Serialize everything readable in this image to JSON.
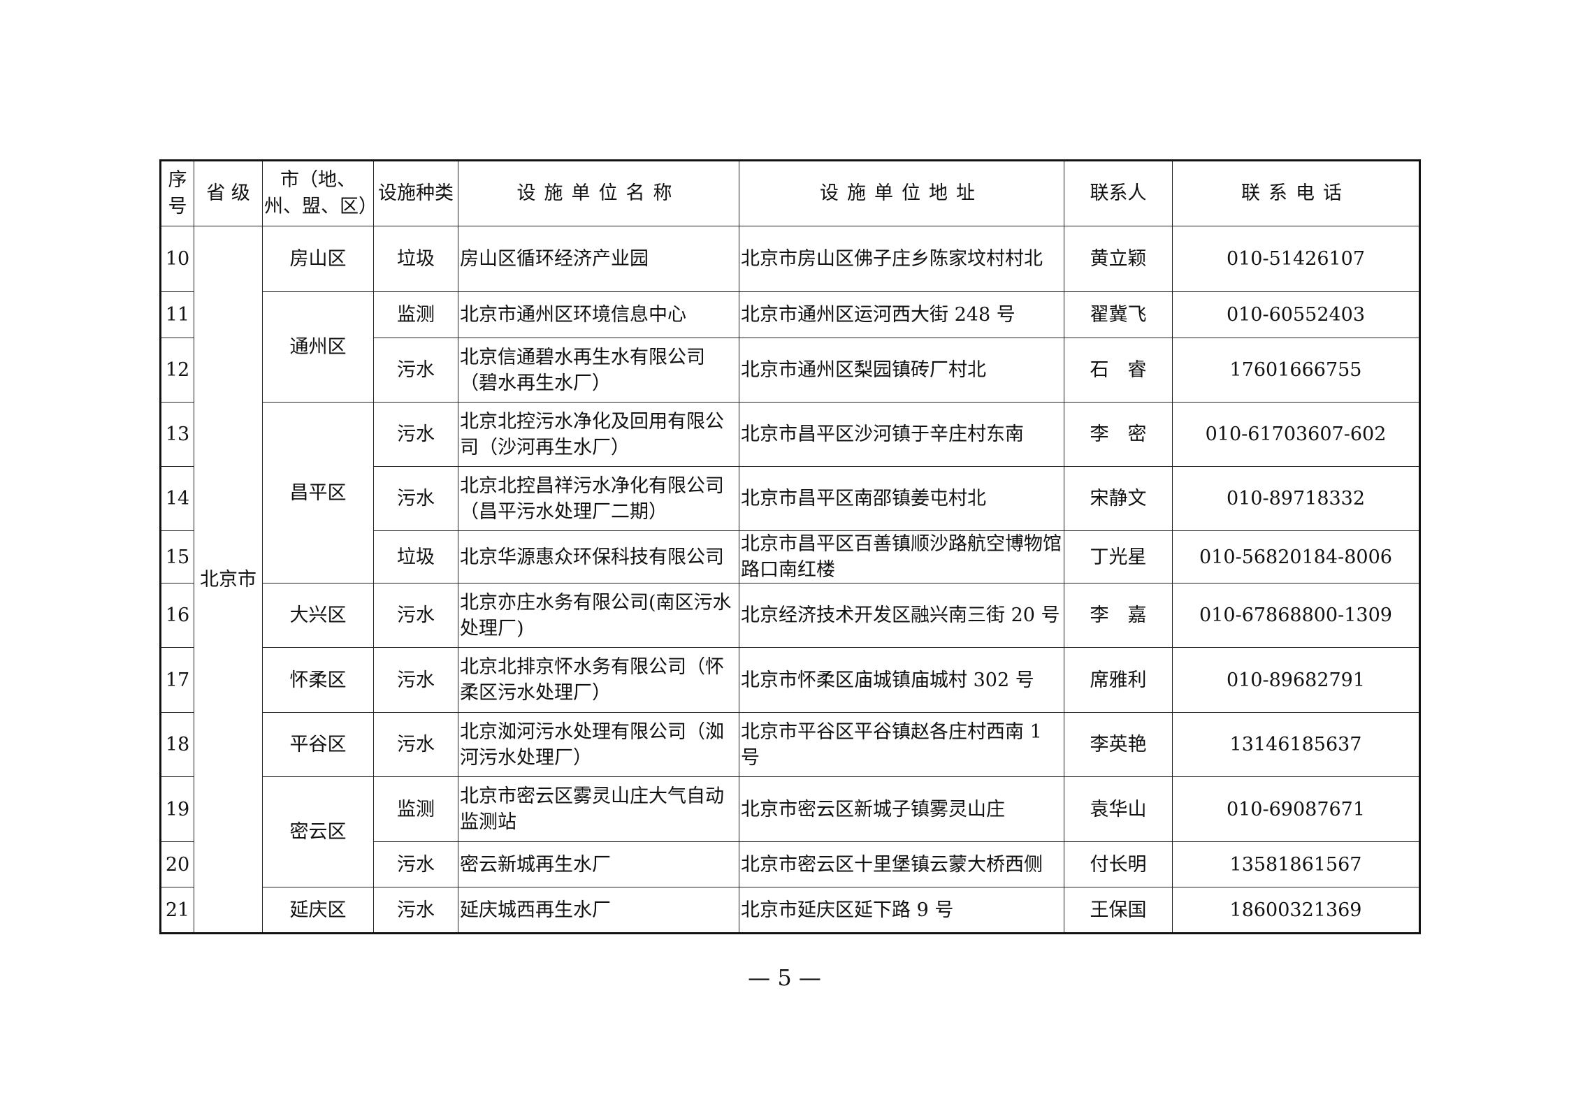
{
  "header": {
    "seq": "序号",
    "province": "省 级",
    "city": "市（地、州、盟、区）",
    "type": "设施种类",
    "name": "设施单位名称",
    "address": "设施单位地址",
    "contact": "联系人",
    "phone": "联系电话"
  },
  "province": "北京市",
  "rows": [
    {
      "seq": "10",
      "district": "房山区",
      "type": "垃圾",
      "name": "房山区循环经济产业园",
      "address": "北京市房山区佛子庄乡陈家坟村村北",
      "contact": "黄立颖",
      "phone": "010-51426107"
    },
    {
      "seq": "11",
      "district": "通州区",
      "type": "监测",
      "name": "北京市通州区环境信息中心",
      "address": "北京市通州区运河西大街 248 号",
      "contact": "翟冀飞",
      "phone": "010-60552403"
    },
    {
      "seq": "12",
      "district": "通州区",
      "type": "污水",
      "name": "北京信通碧水再生水有限公司（碧水再生水厂）",
      "address": "北京市通州区梨园镇砖厂村北",
      "contact": "石　睿",
      "phone": "17601666755"
    },
    {
      "seq": "13",
      "district": "昌平区",
      "type": "污水",
      "name": "北京北控污水净化及回用有限公司（沙河再生水厂）",
      "address": "北京市昌平区沙河镇于辛庄村东南",
      "contact": "李　密",
      "phone": "010-61703607-602"
    },
    {
      "seq": "14",
      "district": "昌平区",
      "type": "污水",
      "name": "北京北控昌祥污水净化有限公司（昌平污水处理厂二期）",
      "address": "北京市昌平区南邵镇姜屯村北",
      "contact": "宋静文",
      "phone": "010-89718332"
    },
    {
      "seq": "15",
      "district": "昌平区",
      "type": "垃圾",
      "name": "北京华源惠众环保科技有限公司",
      "address": "北京市昌平区百善镇顺沙路航空博物馆路口南红楼",
      "contact": "丁光星",
      "phone": "010-56820184-8006"
    },
    {
      "seq": "16",
      "district": "大兴区",
      "type": "污水",
      "name": "北京亦庄水务有限公司(南区污水处理厂)",
      "address": "北京经济技术开发区融兴南三街 20 号",
      "contact": "李　嘉",
      "phone": "010-67868800-1309"
    },
    {
      "seq": "17",
      "district": "怀柔区",
      "type": "污水",
      "name": "北京北排京怀水务有限公司（怀柔区污水处理厂）",
      "address": "北京市怀柔区庙城镇庙城村 302 号",
      "contact": "席雅利",
      "phone": "010-89682791"
    },
    {
      "seq": "18",
      "district": "平谷区",
      "type": "污水",
      "name": "北京洳河污水处理有限公司（洳河污水处理厂）",
      "address": "北京市平谷区平谷镇赵各庄村西南 1 号",
      "contact": "李英艳",
      "phone": "13146185637"
    },
    {
      "seq": "19",
      "district": "密云区",
      "type": "监测",
      "name": "北京市密云区雾灵山庄大气自动监测站",
      "address": "北京市密云区新城子镇雾灵山庄",
      "contact": "袁华山",
      "phone": "010-69087671"
    },
    {
      "seq": "20",
      "district": "密云区",
      "type": "污水",
      "name": "密云新城再生水厂",
      "address": "北京市密云区十里堡镇云蒙大桥西侧",
      "contact": "付长明",
      "phone": "13581861567"
    },
    {
      "seq": "21",
      "district": "延庆区",
      "type": "污水",
      "name": "延庆城西再生水厂",
      "address": "北京市延庆区延下路 9 号",
      "contact": "王保国",
      "phone": "18600321369"
    }
  ],
  "page_number": "— 5 —"
}
